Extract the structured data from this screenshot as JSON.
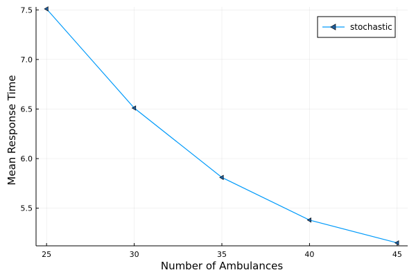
{
  "chart_data": {
    "type": "line",
    "xlabel": "Number of Ambulances",
    "ylabel": "Mean Response Time",
    "x": [
      25,
      30,
      35,
      40,
      45
    ],
    "xlim": [
      24.4,
      45.6
    ],
    "ylim": [
      5.12,
      7.53
    ],
    "xticks": [
      "25",
      "30",
      "35",
      "40",
      "45"
    ],
    "yticks": [
      "5.5",
      "6.0",
      "6.5",
      "7.0",
      "7.5"
    ],
    "grid": true,
    "legend_position": "top-right",
    "series": [
      {
        "name": "stochastic",
        "values": [
          7.51,
          6.51,
          5.81,
          5.38,
          5.15
        ],
        "color": "#009AFA",
        "marker": "left-triangle",
        "marker_color": "#1F5E9E"
      }
    ]
  }
}
